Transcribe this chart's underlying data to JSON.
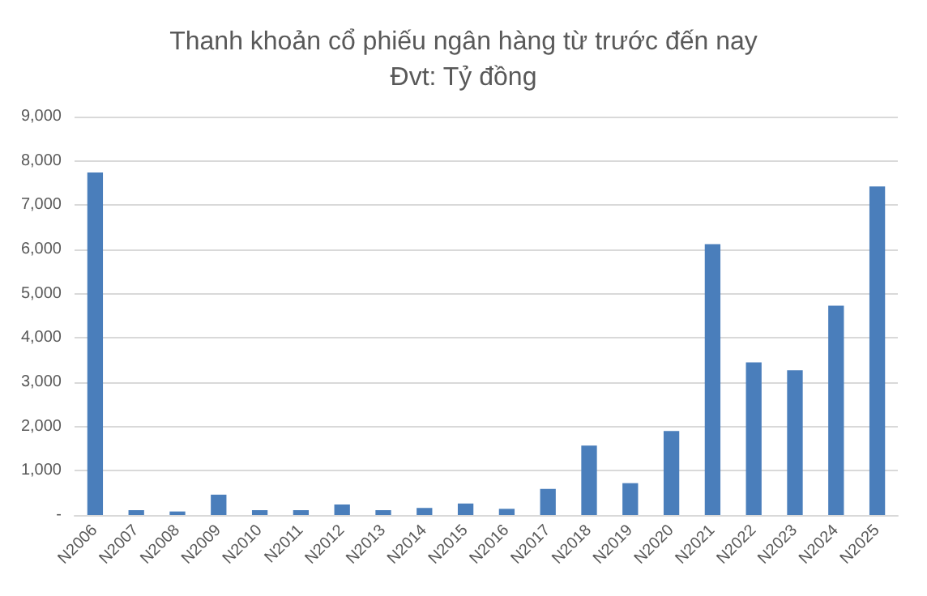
{
  "chart_data": {
    "type": "bar",
    "title": "Thanh khoản cổ phiếu ngân hàng từ trước đến nay",
    "subtitle": "Đvt: Tỷ đồng",
    "categories": [
      "N2006",
      "N2007",
      "N2008",
      "N2009",
      "N2010",
      "N2011",
      "N2012",
      "N2013",
      "N2014",
      "N2015",
      "N2016",
      "N2017",
      "N2018",
      "N2019",
      "N2020",
      "N2021",
      "N2022",
      "N2023",
      "N2024",
      "N2025"
    ],
    "values": [
      7740,
      110,
      80,
      460,
      110,
      110,
      240,
      110,
      160,
      260,
      140,
      590,
      1570,
      720,
      1900,
      6120,
      3450,
      3270,
      4730,
      7420
    ],
    "color": "#4a7ebb",
    "ylim": [
      0,
      9000
    ],
    "yticks": [
      {
        "value": 0,
        "label": "-"
      },
      {
        "value": 1000,
        "label": "1,000"
      },
      {
        "value": 2000,
        "label": "2,000"
      },
      {
        "value": 3000,
        "label": "3,000"
      },
      {
        "value": 4000,
        "label": "4,000"
      },
      {
        "value": 5000,
        "label": "5,000"
      },
      {
        "value": 6000,
        "label": "6,000"
      },
      {
        "value": 7000,
        "label": "7,000"
      },
      {
        "value": 8000,
        "label": "8,000"
      },
      {
        "value": 9000,
        "label": "9,000"
      }
    ],
    "grid": "y"
  }
}
